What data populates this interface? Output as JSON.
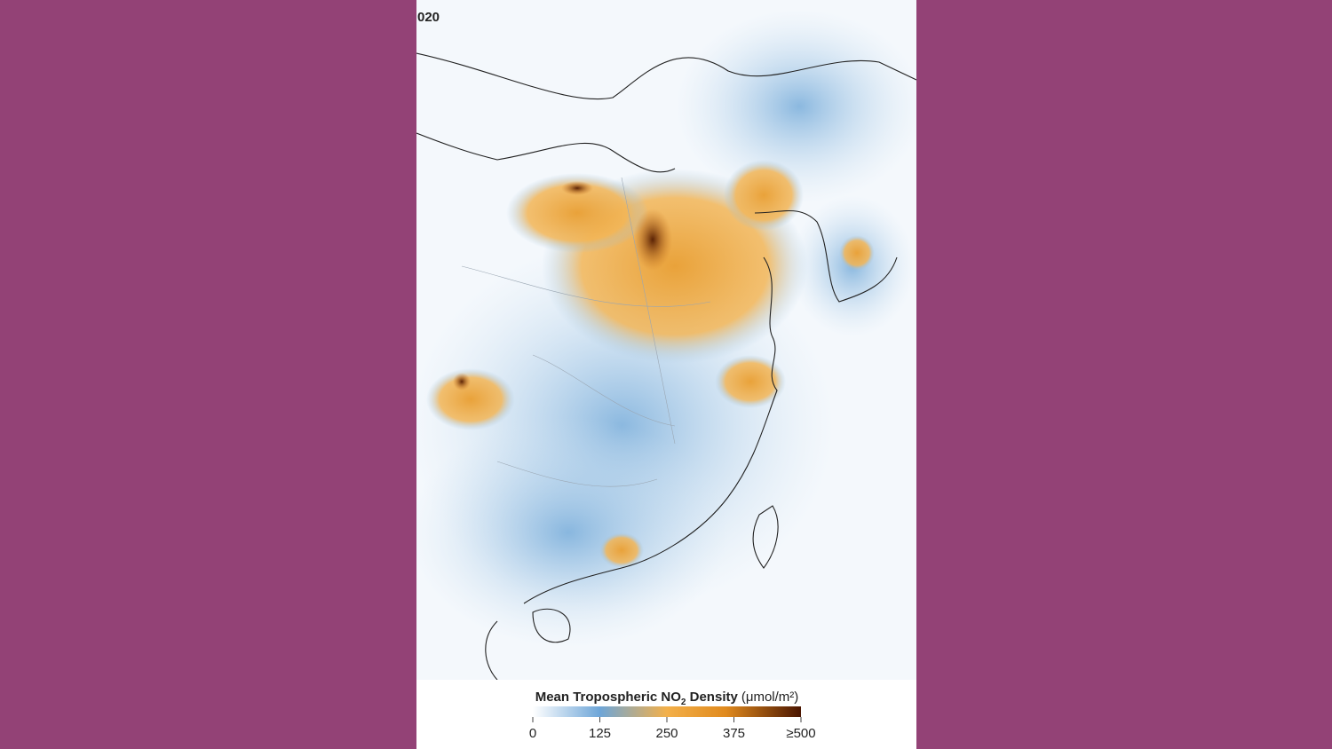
{
  "header": {
    "date": "020"
  },
  "legend": {
    "title_main": "Mean Tropospheric NO",
    "title_sub": "2",
    "title_rest": " Density",
    "unit": "(μmol/m²)",
    "ticks": [
      0,
      125,
      250,
      375,
      {
        "value": 500,
        "label": "≥500"
      }
    ]
  }
}
